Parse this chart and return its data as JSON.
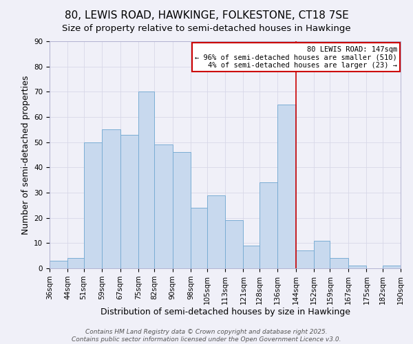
{
  "title": "80, LEWIS ROAD, HAWKINGE, FOLKESTONE, CT18 7SE",
  "subtitle": "Size of property relative to semi-detached houses in Hawkinge",
  "xlabel": "Distribution of semi-detached houses by size in Hawkinge",
  "ylabel": "Number of semi-detached properties",
  "bin_labels": [
    "36sqm",
    "44sqm",
    "51sqm",
    "59sqm",
    "67sqm",
    "75sqm",
    "82sqm",
    "90sqm",
    "98sqm",
    "105sqm",
    "113sqm",
    "121sqm",
    "128sqm",
    "136sqm",
    "144sqm",
    "152sqm",
    "159sqm",
    "167sqm",
    "175sqm",
    "182sqm",
    "190sqm"
  ],
  "bin_edges": [
    36,
    44,
    51,
    59,
    67,
    75,
    82,
    90,
    98,
    105,
    113,
    121,
    128,
    136,
    144,
    152,
    159,
    167,
    175,
    182,
    190
  ],
  "counts": [
    3,
    4,
    50,
    55,
    53,
    70,
    49,
    46,
    24,
    29,
    19,
    9,
    34,
    65,
    7,
    11,
    4,
    1,
    0,
    1
  ],
  "bar_color": "#c8d9ee",
  "bar_edge_color": "#7aadd4",
  "vline_x": 144,
  "vline_color": "#cc0000",
  "annotation_title": "80 LEWIS ROAD: 147sqm",
  "annotation_line1": "← 96% of semi-detached houses are smaller (510)",
  "annotation_line2": "4% of semi-detached houses are larger (23) →",
  "annotation_box_color": "#ffffff",
  "annotation_box_edge": "#cc0000",
  "ylim": [
    0,
    90
  ],
  "yticks": [
    0,
    10,
    20,
    30,
    40,
    50,
    60,
    70,
    80,
    90
  ],
  "footer_line1": "Contains HM Land Registry data © Crown copyright and database right 2025.",
  "footer_line2": "Contains public sector information licensed under the Open Government Licence v3.0.",
  "background_color": "#f0f0f8",
  "grid_color": "#d8d8e8",
  "title_fontsize": 11,
  "subtitle_fontsize": 9.5,
  "axis_label_fontsize": 9,
  "tick_fontsize": 7.5,
  "footer_fontsize": 6.5
}
